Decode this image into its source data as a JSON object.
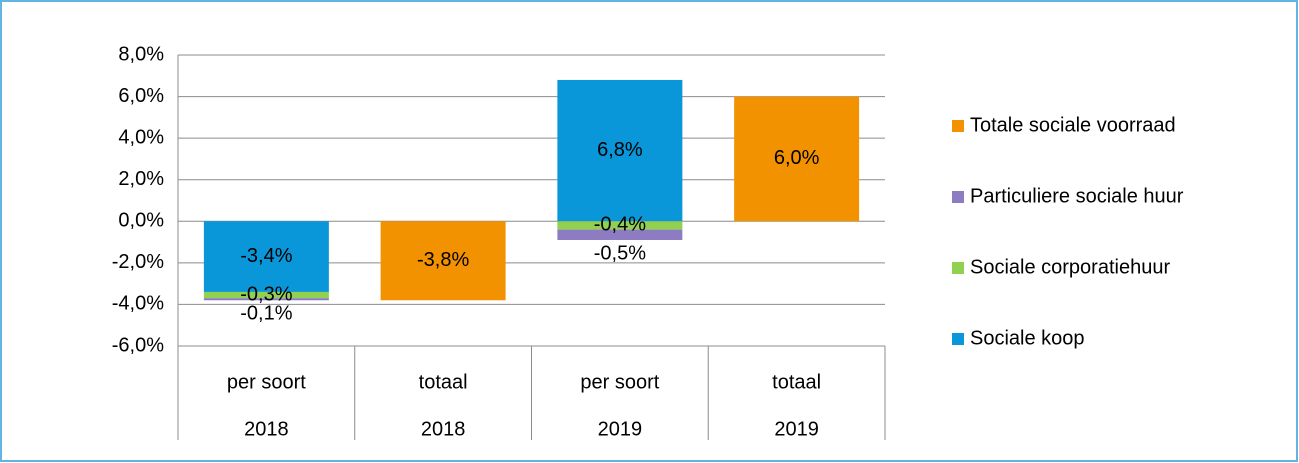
{
  "chart_data": {
    "type": "stacked_bar",
    "categories": [
      "per soort",
      "totaal",
      "per soort",
      "totaal"
    ],
    "category_groups": [
      "2018",
      "2018",
      "2019",
      "2019"
    ],
    "series": [
      {
        "name": "Sociale koop",
        "color": "#0a97d9",
        "values": [
          -3.4,
          null,
          6.8,
          null
        ],
        "value_labels": [
          "-3,4%",
          null,
          "6,8%",
          null
        ]
      },
      {
        "name": "Sociale corporatiehuur",
        "color": "#92d050",
        "values": [
          -0.3,
          null,
          -0.4,
          null
        ],
        "value_labels": [
          "-0,3%",
          null,
          "-0,4%",
          null
        ]
      },
      {
        "name": "Particuliere sociale huur",
        "color": "#8e7cc3",
        "values": [
          -0.1,
          null,
          -0.5,
          null
        ],
        "value_labels": [
          "-0,1%",
          null,
          "-0,5%",
          null
        ]
      },
      {
        "name": "Totale sociale voorraad",
        "color": "#f39200",
        "values": [
          null,
          -3.8,
          null,
          6.0
        ],
        "value_labels": [
          null,
          "-3,8%",
          null,
          "6,0%"
        ]
      }
    ],
    "ylim": [
      -6,
      8
    ],
    "yticks": [
      {
        "value": -6,
        "label": "-6,0%"
      },
      {
        "value": -4,
        "label": "-4,0%"
      },
      {
        "value": -2,
        "label": "-2,0%"
      },
      {
        "value": 0,
        "label": "0,0%"
      },
      {
        "value": 2,
        "label": "2,0%"
      },
      {
        "value": 4,
        "label": "4,0%"
      },
      {
        "value": 6,
        "label": "6,0%"
      },
      {
        "value": 8,
        "label": "8,0%"
      }
    ],
    "grid": true,
    "legend": "right"
  }
}
